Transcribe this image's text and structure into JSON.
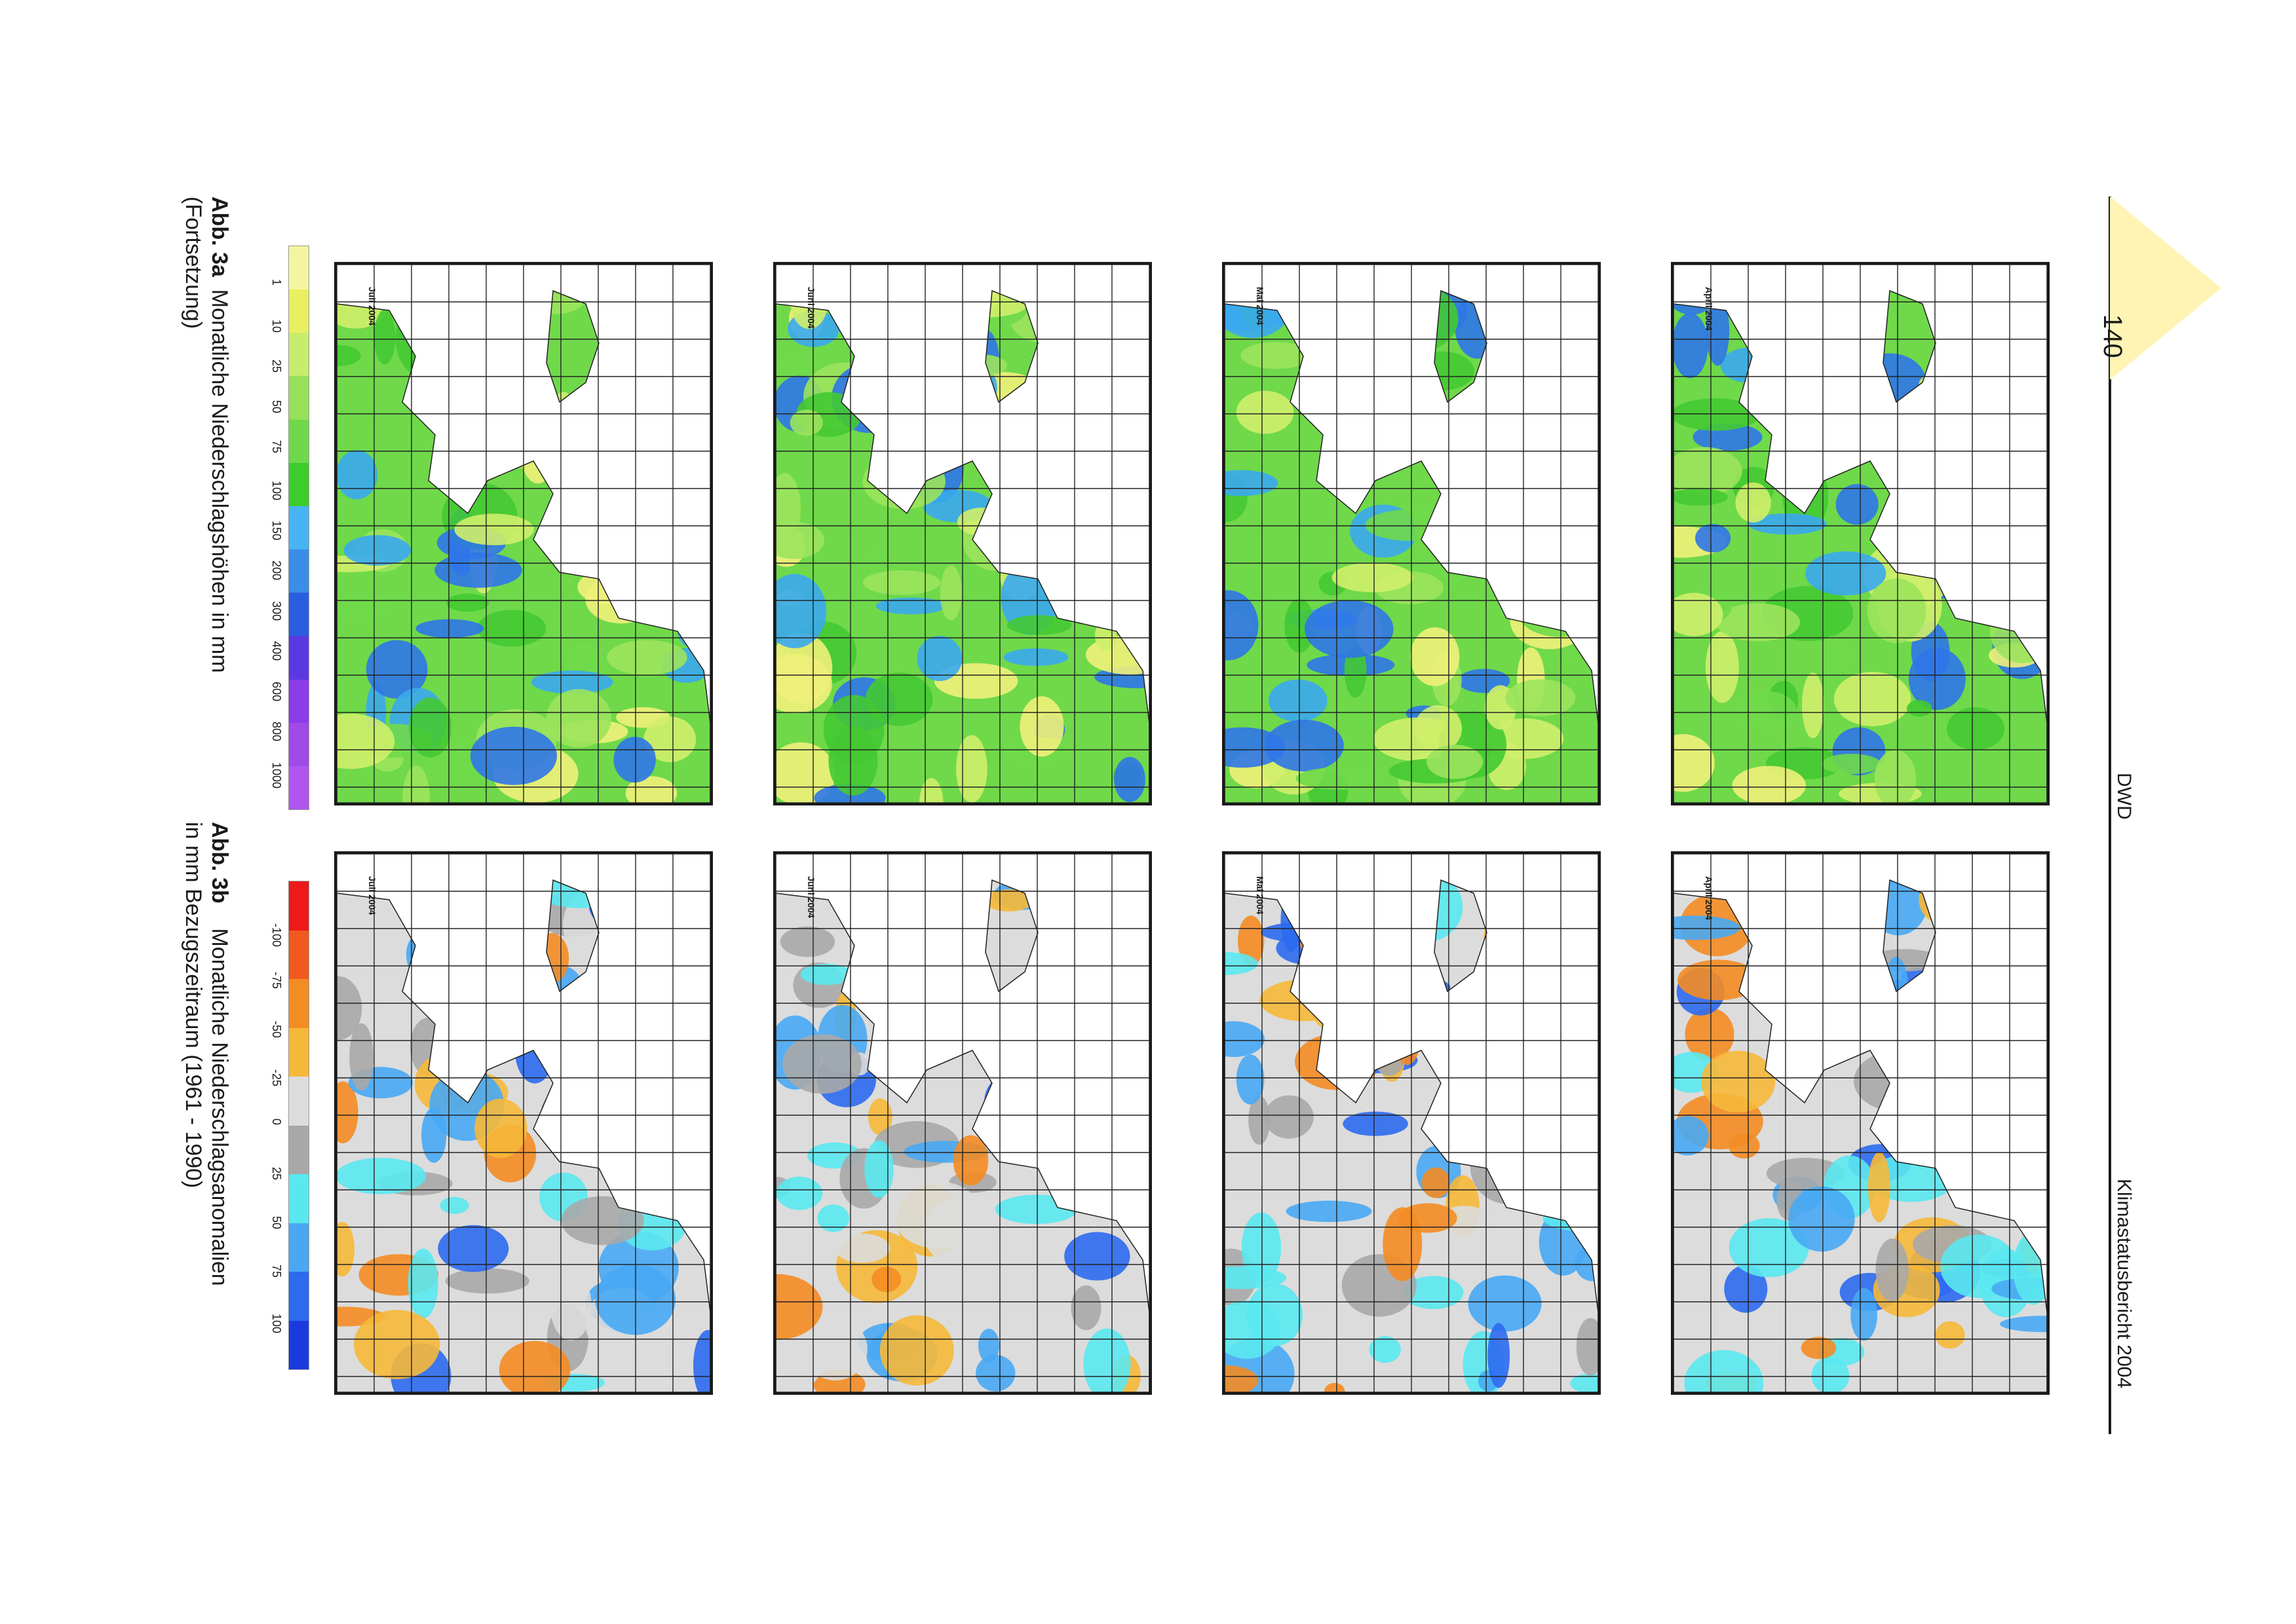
{
  "header": {
    "page_number": "140",
    "organization": "DWD",
    "report_title": "Klimastatusbericht 2004"
  },
  "panels_a": [
    {
      "label": "April 2004"
    },
    {
      "label": "Mai 2004"
    },
    {
      "label": "Juni 2004"
    },
    {
      "label": "Juli 2004"
    }
  ],
  "panels_b": [
    {
      "label": "April 2004"
    },
    {
      "label": "Mai 2004"
    },
    {
      "label": "Juni 2004"
    },
    {
      "label": "Juli 2004"
    }
  ],
  "legend_a": {
    "ticks": [
      "1",
      "10",
      "25",
      "50",
      "75",
      "100",
      "150",
      "200",
      "300",
      "400",
      "600",
      "800",
      "1000"
    ],
    "colors": [
      "#f5f5a0",
      "#e8ef60",
      "#c8ec6c",
      "#96e05a",
      "#6fd94a",
      "#3ccc2c",
      "#48b4f4",
      "#3a8ee8",
      "#2a5ee0",
      "#5a3ae0",
      "#8c3ce8",
      "#a04ae8",
      "#b056ee"
    ]
  },
  "legend_b": {
    "ticks": [
      "-100",
      "-75",
      "-50",
      "-25",
      "0",
      "25",
      "50",
      "75",
      "100"
    ],
    "colors": [
      "#ee1a1a",
      "#f05a1e",
      "#f48c24",
      "#f6b838",
      "#dcdcdc",
      "#a8a8a8",
      "#5ae8f0",
      "#48a8f4",
      "#2c6af0",
      "#1a3ae0"
    ]
  },
  "caption_a": {
    "label": "Abb. 3a",
    "text": "Monatliche Niederschlagshöhen in mm",
    "cont": "(Fortsetzung)"
  },
  "caption_b": {
    "label": "Abb. 3b",
    "text": "Monatliche Niederschlagsanomalien",
    "line2": "in mm Bezugszeitraum (1961 - 1990)"
  },
  "colors": {
    "tab": "#fff4b4",
    "precip_palette": [
      "#f0f07a",
      "#cfee6c",
      "#9be35c",
      "#6fd94a",
      "#44c932",
      "#3aa8f0",
      "#2f76e8"
    ],
    "anomaly_palette": [
      "#f6b838",
      "#f48c24",
      "#dcdcdc",
      "#a8a8a8",
      "#5ae8f0",
      "#48a8f4",
      "#2c6af0"
    ]
  }
}
